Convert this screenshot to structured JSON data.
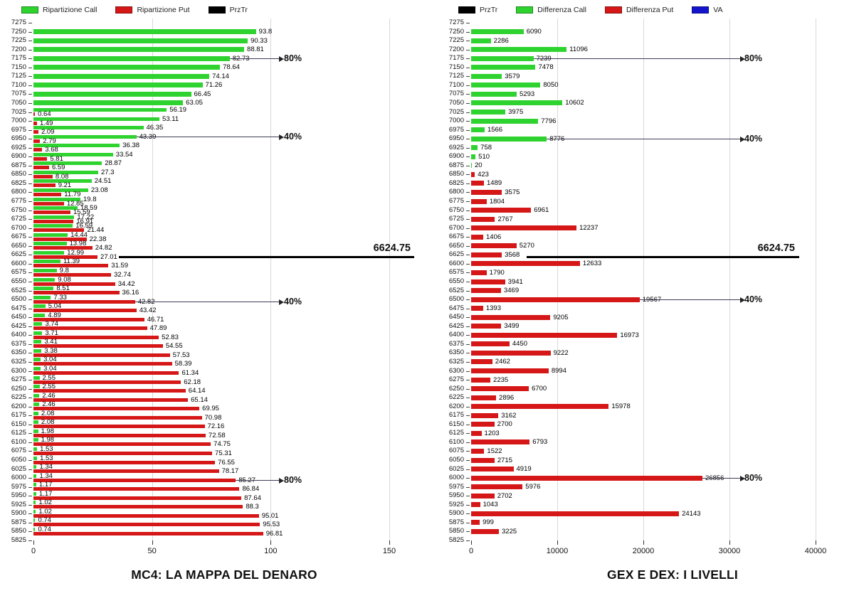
{
  "page": {
    "background": "#ffffff"
  },
  "chart_data": [
    {
      "id": "mc4",
      "type": "bar",
      "orientation": "horizontal",
      "title": "MC4: LA MAPPA DEL DENARO",
      "legend": [
        {
          "label": "Ripartizione Call",
          "color": "#2fd32f"
        },
        {
          "label": "Ripartizione Put",
          "color": "#d51717"
        },
        {
          "label": "PrzTr",
          "color": "#000000"
        }
      ],
      "x_ticks": [
        0,
        50,
        100,
        150
      ],
      "xlim": [
        0,
        160
      ],
      "grid": true,
      "categories": [
        "7275",
        "7250",
        "7225",
        "7200",
        "7175",
        "7150",
        "7125",
        "7100",
        "7075",
        "7050",
        "7025",
        "7000",
        "6975",
        "6950",
        "6925",
        "6900",
        "6875",
        "6850",
        "6825",
        "6800",
        "6775",
        "6750",
        "6725",
        "6700",
        "6675",
        "6650",
        "6625",
        "6600",
        "6575",
        "6550",
        "6525",
        "6500",
        "6475",
        "6450",
        "6425",
        "6400",
        "6375",
        "6350",
        "6325",
        "6300",
        "6275",
        "6250",
        "6225",
        "6200",
        "6175",
        "6150",
        "6125",
        "6100",
        "6075",
        "6050",
        "6025",
        "6000",
        "5975",
        "5950",
        "5925",
        "5900",
        "5875",
        "5850",
        "5825"
      ],
      "series": [
        {
          "name": "Ripartizione Call",
          "color": "#2fd32f",
          "values": [
            null,
            93.8,
            90.33,
            88.81,
            82.73,
            78.64,
            74.14,
            71.26,
            66.45,
            63.05,
            56.19,
            53.11,
            46.35,
            43.39,
            36.38,
            33.54,
            28.87,
            27.3,
            24.51,
            23.08,
            19.8,
            18.59,
            17.22,
            16.59,
            14.44,
            13.98,
            12.99,
            11.39,
            9.8,
            9.08,
            8.51,
            7.33,
            5.04,
            4.89,
            3.74,
            3.71,
            3.41,
            3.38,
            3.04,
            3.04,
            2.55,
            2.55,
            2.46,
            2.46,
            2.08,
            2.08,
            1.98,
            1.98,
            1.53,
            1.53,
            1.34,
            1.34,
            1.17,
            1.17,
            1.02,
            1.02,
            0.74,
            0.74,
            null
          ]
        },
        {
          "name": "Ripartizione Put",
          "color": "#d51717",
          "values": [
            null,
            null,
            null,
            null,
            null,
            null,
            null,
            null,
            null,
            null,
            0.64,
            1.49,
            2.09,
            2.79,
            3.68,
            5.81,
            6.59,
            8.08,
            9.21,
            11.79,
            12.85,
            15.59,
            16.91,
            21.44,
            22.38,
            24.82,
            27.01,
            31.59,
            32.74,
            34.42,
            36.16,
            42.82,
            43.42,
            46.71,
            47.89,
            52.83,
            54.55,
            57.53,
            58.39,
            61.34,
            62.18,
            64.14,
            65.14,
            69.95,
            70.98,
            72.16,
            72.58,
            74.75,
            75.31,
            76.55,
            78.17,
            85.27,
            86.84,
            87.64,
            88.3,
            95.01,
            95.53,
            96.81,
            null
          ]
        }
      ],
      "przt_line": {
        "label": "6624.75",
        "category": "6625",
        "color": "#000000"
      },
      "ref_lines": [
        {
          "category": "7175",
          "label": "80%",
          "series": 0
        },
        {
          "category": "6950",
          "label": "40%",
          "series": 0
        },
        {
          "category": "6500",
          "label": "40%",
          "series": 1
        },
        {
          "category": "6000",
          "label": "80%",
          "series": 1
        }
      ]
    },
    {
      "id": "gex-dex",
      "type": "bar",
      "orientation": "horizontal",
      "title": "GEX E DEX: I LIVELLI",
      "legend": [
        {
          "label": "PrzTr",
          "color": "#000000"
        },
        {
          "label": "Differenza Call",
          "color": "#2fd32f"
        },
        {
          "label": "Differenza Put",
          "color": "#d51717"
        },
        {
          "label": "VA",
          "color": "#1414cc"
        }
      ],
      "x_ticks": [
        0,
        10000,
        20000,
        30000,
        40000
      ],
      "xlim": [
        0,
        43000
      ],
      "grid": true,
      "categories": [
        "7275",
        "7250",
        "7225",
        "7200",
        "7175",
        "7150",
        "7125",
        "7100",
        "7075",
        "7050",
        "7025",
        "7000",
        "6975",
        "6950",
        "6925",
        "6900",
        "6875",
        "6850",
        "6825",
        "6800",
        "6775",
        "6750",
        "6725",
        "6700",
        "6675",
        "6650",
        "6625",
        "6600",
        "6575",
        "6550",
        "6525",
        "6500",
        "6475",
        "6450",
        "6425",
        "6400",
        "6375",
        "6350",
        "6325",
        "6300",
        "6275",
        "6250",
        "6225",
        "6200",
        "6175",
        "6150",
        "6125",
        "6100",
        "6075",
        "6050",
        "6025",
        "6000",
        "5975",
        "5950",
        "5925",
        "5900",
        "5875",
        "5850",
        "5825"
      ],
      "series": [
        {
          "name": "Differenza Call",
          "color": "#2fd32f",
          "values": [
            null,
            6090,
            2286,
            11096,
            7239,
            7478,
            3579,
            8050,
            5293,
            10602,
            3975,
            7796,
            1566,
            8776,
            758,
            510,
            20,
            null,
            null,
            null,
            null,
            null,
            null,
            null,
            null,
            null,
            null,
            null,
            null,
            null,
            null,
            null,
            null,
            null,
            null,
            null,
            null,
            null,
            null,
            null,
            null,
            null,
            null,
            null,
            null,
            null,
            null,
            null,
            null,
            null,
            null,
            null,
            null,
            null,
            null,
            null,
            null,
            null,
            null
          ]
        },
        {
          "name": "Differenza Put",
          "color": "#d51717",
          "values": [
            null,
            null,
            null,
            null,
            null,
            null,
            null,
            null,
            null,
            null,
            null,
            null,
            null,
            null,
            null,
            null,
            null,
            423,
            1489,
            3575,
            1804,
            6961,
            2767,
            12237,
            1406,
            5270,
            3568,
            12633,
            1790,
            3941,
            3469,
            19567,
            1393,
            9205,
            3499,
            16973,
            4450,
            9222,
            2462,
            8994,
            2235,
            6700,
            2896,
            15978,
            3162,
            2700,
            1203,
            6793,
            1522,
            2715,
            4919,
            26856,
            5976,
            2702,
            1043,
            24143,
            999,
            3225,
            null
          ]
        }
      ],
      "przt_line": {
        "label": "6624.75",
        "category": "6625",
        "color": "#000000"
      },
      "ref_lines": [
        {
          "category": "7175",
          "label": "80%",
          "series": 0
        },
        {
          "category": "6950",
          "label": "40%",
          "series": 0
        },
        {
          "category": "6500",
          "label": "40%",
          "series": 1
        },
        {
          "category": "6000",
          "label": "80%",
          "series": 1
        }
      ]
    }
  ]
}
